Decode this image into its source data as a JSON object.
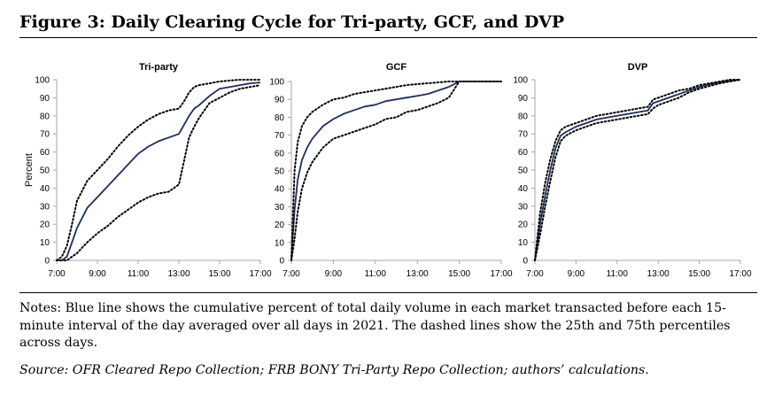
{
  "figure": {
    "title": "Figure 3: Daily Clearing Cycle for Tri-party, GCF, and DVP",
    "notes": "Notes: Blue line shows the cumulative percent of total daily volume in each market transacted before each 15-minute interval of the day averaged over all days in 2021. The dashed lines show the 25th and 75th percentiles across days.",
    "source": "Source: OFR Cleared Repo Collection; FRB BONY Tri-Party Repo Collection; authors’ calculations."
  },
  "colors": {
    "mean_line": "#1f2d5c",
    "percentile_line": "#000000",
    "axis": "#a6a6a6"
  },
  "chart_data": [
    {
      "type": "line",
      "title": "Tri-party",
      "ylabel": "Percent",
      "xlabel": "",
      "x_ticks": [
        "7:00",
        "9:00",
        "11:00",
        "13:00",
        "15:00",
        "17:00"
      ],
      "y_ticks": [
        0,
        10,
        20,
        30,
        40,
        50,
        60,
        70,
        80,
        90,
        100
      ],
      "xlim": [
        7,
        17
      ],
      "ylim": [
        0,
        100
      ],
      "series": [
        {
          "role": "mean",
          "x": [
            7,
            7.25,
            7.5,
            7.75,
            8,
            8.5,
            9,
            9.5,
            10,
            10.5,
            11,
            11.5,
            12,
            12.5,
            13,
            13.25,
            13.5,
            13.75,
            14,
            14.5,
            15,
            15.5,
            16,
            16.5,
            17
          ],
          "y": [
            0,
            0,
            2,
            10,
            18,
            29,
            35,
            41,
            47,
            53,
            59,
            63,
            66,
            68,
            70,
            75,
            80,
            84,
            86,
            91,
            95,
            96,
            97,
            98,
            98.5
          ]
        },
        {
          "role": "p75",
          "x": [
            7,
            7.25,
            7.5,
            7.75,
            8,
            8.5,
            9,
            9.5,
            10,
            10.5,
            11,
            11.5,
            12,
            12.5,
            13,
            13.25,
            13.5,
            13.75,
            14,
            14.5,
            15,
            15.5,
            16,
            16.5,
            17
          ],
          "y": [
            0,
            2,
            8,
            20,
            33,
            44,
            50,
            56,
            63,
            69,
            74,
            78,
            81,
            83,
            84,
            88,
            93,
            96,
            97,
            98,
            99,
            99.5,
            100,
            100,
            100
          ]
        },
        {
          "role": "p25",
          "x": [
            7,
            7.5,
            8,
            8.5,
            9,
            9.5,
            10,
            10.5,
            11,
            11.5,
            12,
            12.5,
            13,
            13.25,
            13.5,
            13.75,
            14,
            14.5,
            15,
            15.5,
            16,
            16.5,
            17
          ],
          "y": [
            0,
            0,
            4,
            10,
            15,
            19,
            24,
            28,
            32,
            35,
            37,
            38,
            42,
            55,
            68,
            74,
            79,
            87,
            90,
            93,
            95,
            96,
            97
          ]
        }
      ]
    },
    {
      "type": "line",
      "title": "GCF",
      "xlabel": "",
      "x_ticks": [
        "7:00",
        "9:00",
        "11:00",
        "13:00",
        "15:00",
        "17:00"
      ],
      "y_ticks": [
        0,
        10,
        20,
        30,
        40,
        50,
        60,
        70,
        80,
        90,
        100
      ],
      "xlim": [
        7,
        17
      ],
      "ylim": [
        0,
        100
      ],
      "series": [
        {
          "role": "mean",
          "x": [
            7,
            7.15,
            7.3,
            7.5,
            7.75,
            8,
            8.5,
            9,
            9.5,
            10,
            10.5,
            11,
            11.5,
            12,
            12.5,
            13,
            13.5,
            14,
            14.5,
            15,
            15.5,
            16,
            16.5,
            17
          ],
          "y": [
            0,
            28,
            45,
            56,
            63,
            68,
            75,
            79,
            82,
            84,
            86,
            87,
            89,
            90,
            91,
            92,
            93,
            95,
            97,
            100,
            100,
            100,
            100,
            100
          ]
        },
        {
          "role": "p75",
          "x": [
            7,
            7.15,
            7.3,
            7.5,
            7.75,
            8,
            8.5,
            9,
            9.5,
            10,
            10.5,
            11,
            11.5,
            12,
            12.5,
            13,
            13.5,
            14,
            14.5,
            15,
            15.5,
            16,
            16.5,
            17
          ],
          "y": [
            0,
            50,
            66,
            75,
            80,
            83,
            87,
            90,
            91,
            93,
            94,
            95,
            96,
            97,
            98,
            98.5,
            99,
            99.5,
            100,
            100,
            100,
            100,
            100,
            100
          ]
        },
        {
          "role": "p25",
          "x": [
            7,
            7.15,
            7.3,
            7.5,
            7.75,
            8,
            8.5,
            9,
            9.5,
            10,
            10.5,
            11,
            11.5,
            12,
            12.5,
            13,
            13.5,
            14,
            14.5,
            15,
            15.5,
            16,
            16.5,
            17
          ],
          "y": [
            0,
            12,
            27,
            40,
            49,
            55,
            63,
            68,
            70,
            72,
            74,
            76,
            79,
            80,
            83,
            84,
            86,
            88,
            91,
            100,
            100,
            100,
            100,
            100
          ]
        }
      ]
    },
    {
      "type": "line",
      "title": "DVP",
      "xlabel": "",
      "x_ticks": [
        "7:00",
        "9:00",
        "11:00",
        "13:00",
        "15:00",
        "17:00"
      ],
      "y_ticks": [
        0,
        10,
        20,
        30,
        40,
        50,
        60,
        70,
        80,
        90,
        100
      ],
      "xlim": [
        7,
        17
      ],
      "ylim": [
        0,
        100
      ],
      "series": [
        {
          "role": "mean",
          "x": [
            7,
            7.25,
            7.5,
            7.75,
            8,
            8.25,
            8.5,
            9,
            9.5,
            10,
            10.5,
            11,
            11.5,
            12,
            12.5,
            12.75,
            13,
            13.5,
            14,
            14.5,
            15,
            15.5,
            16,
            16.5,
            17
          ],
          "y": [
            0,
            20,
            36,
            50,
            62,
            69,
            71,
            74,
            76,
            78,
            79,
            80,
            81,
            82,
            83,
            87,
            88,
            90,
            92,
            94,
            96,
            97.5,
            98.5,
            99.5,
            100
          ]
        },
        {
          "role": "p75",
          "x": [
            7,
            7.25,
            7.5,
            7.75,
            8,
            8.25,
            8.5,
            9,
            9.5,
            10,
            10.5,
            11,
            11.5,
            12,
            12.5,
            12.75,
            13,
            13.5,
            14,
            14.5,
            15,
            15.5,
            16,
            16.5,
            17
          ],
          "y": [
            0,
            26,
            43,
            56,
            66,
            72,
            74,
            76,
            78,
            80,
            81,
            82,
            83,
            84,
            85,
            89,
            90,
            92,
            94,
            95,
            97,
            98,
            99,
            100,
            100
          ]
        },
        {
          "role": "p25",
          "x": [
            7,
            7.25,
            7.5,
            7.75,
            8,
            8.25,
            8.5,
            9,
            9.5,
            10,
            10.5,
            11,
            11.5,
            12,
            12.5,
            12.75,
            13,
            13.5,
            14,
            14.5,
            15,
            15.5,
            16,
            16.5,
            17
          ],
          "y": [
            0,
            14,
            30,
            44,
            57,
            66,
            69,
            72,
            74,
            76,
            77,
            78,
            79,
            80,
            81,
            84,
            86,
            88,
            90,
            93,
            95,
            96.5,
            98,
            99,
            100
          ]
        }
      ]
    }
  ]
}
